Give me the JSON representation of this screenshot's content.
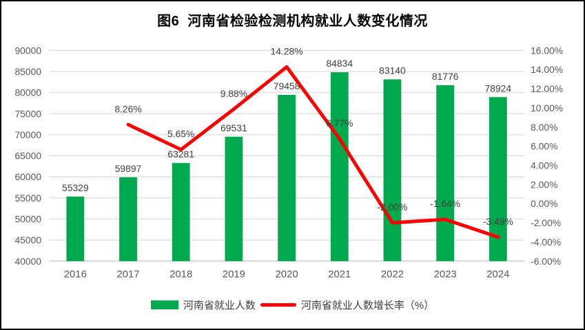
{
  "title": "图6  河南省检验检测机构就业人数变化情况",
  "chart_data": {
    "type": "bar+line combo",
    "title": "图6  河南省检验检测机构就业人数变化情况",
    "categories": [
      "2016",
      "2017",
      "2018",
      "2019",
      "2020",
      "2021",
      "2022",
      "2023",
      "2024"
    ],
    "series": [
      {
        "name": "河南省就业人数",
        "type": "bar",
        "axis": "left",
        "color": "#00A84E",
        "values": [
          55329,
          59897,
          63281,
          69531,
          79458,
          84834,
          83140,
          81776,
          78924
        ]
      },
      {
        "name": "河南省就业人数增长率（%）",
        "type": "line",
        "axis": "right",
        "color": "#FE0000",
        "values": [
          null,
          8.26,
          5.65,
          9.88,
          14.28,
          6.77,
          -2.0,
          -1.64,
          -3.49
        ],
        "point_labels": [
          null,
          "8.26%",
          "5.65%",
          "9.88%",
          "14.28%",
          "6.77%",
          "-2.00%",
          "-1.64%",
          "-3.49%"
        ]
      }
    ],
    "left_axis": {
      "min": 40000,
      "max": 90000,
      "step": 5000,
      "tick_labels": [
        "90000",
        "85000",
        "80000",
        "75000",
        "70000",
        "65000",
        "60000",
        "55000",
        "50000",
        "45000",
        "40000"
      ]
    },
    "right_axis": {
      "min": -6,
      "max": 16,
      "step": 2,
      "tick_labels": [
        "16.00%",
        "14.00%",
        "12.00%",
        "10.00%",
        "8.00%",
        "6.00%",
        "4.00%",
        "2.00%",
        "0.00%",
        "-2.00%",
        "-4.00%",
        "-6.00%"
      ]
    },
    "grid": true,
    "legend_position": "bottom",
    "gridline_color": "#D9D9D9",
    "baseline_color": "#BFBFBF"
  }
}
